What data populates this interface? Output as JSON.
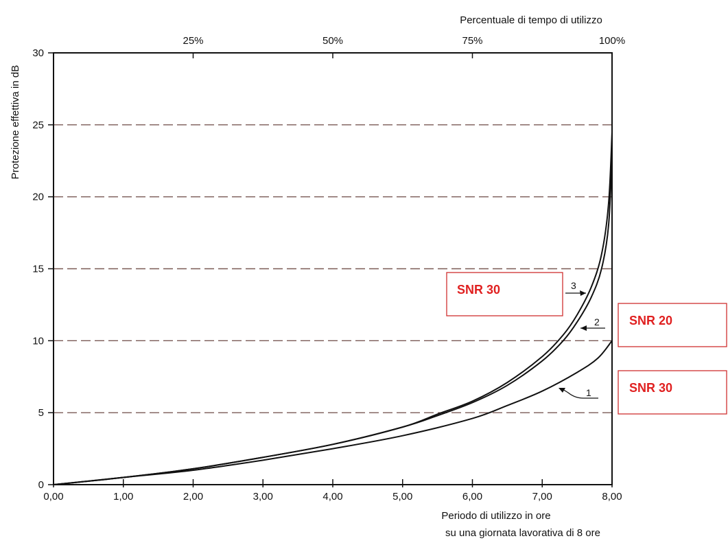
{
  "chart_data": {
    "type": "line",
    "top_axis_label": "Percentuale di tempo di utilizzo",
    "top_ticks": [
      "25%",
      "50%",
      "75%",
      "100%"
    ],
    "top_tick_values": [
      2,
      4,
      6,
      8
    ],
    "ylabel": "Protezione effettiva in dB",
    "xlabel_line1": "Periodo di utilizzo in ore",
    "xlabel_line2": "su una giornata lavorativa di 8 ore",
    "x_ticks": [
      "0,00",
      "1,00",
      "2,00",
      "3,00",
      "4,00",
      "5,00",
      "6,00",
      "7,00",
      "8,00"
    ],
    "y_ticks": [
      "0",
      "5",
      "10",
      "15",
      "20",
      "25",
      "30"
    ],
    "xlim": [
      0,
      8
    ],
    "ylim": [
      0,
      30
    ],
    "grid": "dashed horizontal at 5, 10, 15, 20, 25",
    "series": [
      {
        "name": "1",
        "x": [
          0,
          1,
          2,
          3,
          4,
          5,
          6,
          6.5,
          7,
          7.5,
          7.8,
          8
        ],
        "values": [
          0,
          0.5,
          1.0,
          1.7,
          2.5,
          3.4,
          4.6,
          5.5,
          6.5,
          7.8,
          8.8,
          10
        ],
        "snr_label": "SNR 30"
      },
      {
        "name": "2",
        "x": [
          0,
          1,
          2,
          3,
          4,
          5,
          5.5,
          6,
          6.5,
          7,
          7.3,
          7.5,
          7.7,
          7.85,
          7.95,
          8
        ],
        "values": [
          0,
          0.5,
          1.1,
          1.9,
          2.8,
          4.0,
          4.8,
          5.7,
          6.9,
          8.6,
          10.0,
          11.3,
          13.0,
          15.0,
          18.0,
          23
        ],
        "snr_label": "SNR 20"
      },
      {
        "name": "3",
        "x": [
          0,
          1,
          2,
          3,
          4,
          5,
          5.5,
          6,
          6.5,
          7,
          7.3,
          7.5,
          7.7,
          7.85,
          7.95,
          8
        ],
        "values": [
          0,
          0.5,
          1.1,
          1.9,
          2.8,
          4.0,
          4.9,
          5.8,
          7.1,
          8.9,
          10.4,
          11.8,
          13.7,
          16.0,
          19.5,
          24.5
        ],
        "snr_label": "SNR 30"
      }
    ],
    "annotations": [
      {
        "text": "SNR 30",
        "box": "red"
      },
      {
        "text": "SNR 20",
        "box": "red"
      },
      {
        "text": "SNR 30",
        "box": "red"
      }
    ]
  },
  "colors": {
    "curve": "#111111",
    "grid": "#7a5a55",
    "label_red": "#e02020",
    "box_border": "#d03030"
  }
}
